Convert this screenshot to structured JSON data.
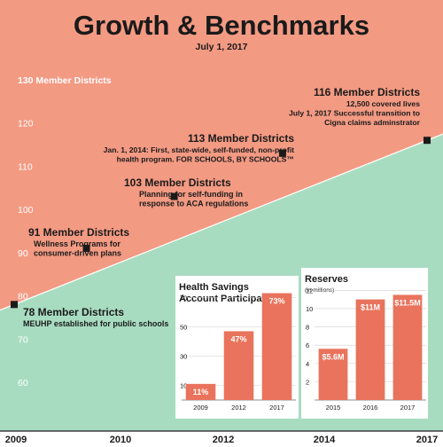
{
  "header": {
    "title": "Growth & Benchmarks",
    "date": "July 1, 2017"
  },
  "colors": {
    "salmon": "#f39a83",
    "green": "#a8dcc0",
    "bar": "#e9735c",
    "marker": "#1a1a1a",
    "ink": "#1a1a1a",
    "white": "#ffffff"
  },
  "chart_data": [
    {
      "type": "line",
      "ylim": [
        55,
        135
      ],
      "xlim": [
        2009,
        2017
      ],
      "yticks": [
        60,
        70,
        80,
        90,
        100,
        110,
        120
      ],
      "ytop_label": "130 Member Districts",
      "xticks": [
        "2009",
        "2010",
        "2012",
        "2014",
        "2017"
      ],
      "x_positions": [
        2009,
        2010.33,
        2012.1,
        2014.25,
        2017
      ],
      "points": [
        {
          "x": 2009,
          "y": 78,
          "label": "78 Member Districts",
          "note": [
            "MEUHP established for public schools"
          ]
        },
        {
          "x": 2010.4,
          "y": 91,
          "label": "91 Member Districts",
          "note": [
            "Wellness Programs for",
            "consumer-driven plans"
          ]
        },
        {
          "x": 2012.1,
          "y": 103,
          "label": "103 Member Districts",
          "note": [
            "Planning for self-funding in",
            "response to ACA regulations"
          ]
        },
        {
          "x": 2014.2,
          "y": 113,
          "label": "113 Member Districts",
          "note": [
            "Jan. 1, 2014: First, state-wide, self-funded, non-profit",
            "health program. FOR SCHOOLS, BY SCHOOLS™"
          ]
        },
        {
          "x": 2017,
          "y": 116,
          "label": "116 Member Districts",
          "note": [
            "12,500 covered lives",
            "July 1, 2017 Successful transition to",
            "Cigna claims adminstrator"
          ]
        }
      ]
    },
    {
      "type": "bar",
      "title": [
        "Health Savings",
        "Account Participation"
      ],
      "categories": [
        "2009",
        "2012",
        "2017"
      ],
      "values": [
        11,
        47,
        73
      ],
      "data_labels": [
        "11%",
        "47%",
        "73%"
      ],
      "yticks": [
        10,
        30,
        50,
        70
      ],
      "ylim": [
        0,
        80
      ]
    },
    {
      "type": "bar",
      "title": [
        "Reserves"
      ],
      "subtitle": "(In millions)",
      "categories": [
        "2015",
        "2016",
        "2017"
      ],
      "values": [
        5.6,
        11,
        11.5
      ],
      "data_labels": [
        "$5.6M",
        "$11M",
        "$11.5M"
      ],
      "yticks": [
        2,
        4,
        6,
        8,
        10,
        12
      ],
      "ylim": [
        0,
        13
      ]
    }
  ]
}
